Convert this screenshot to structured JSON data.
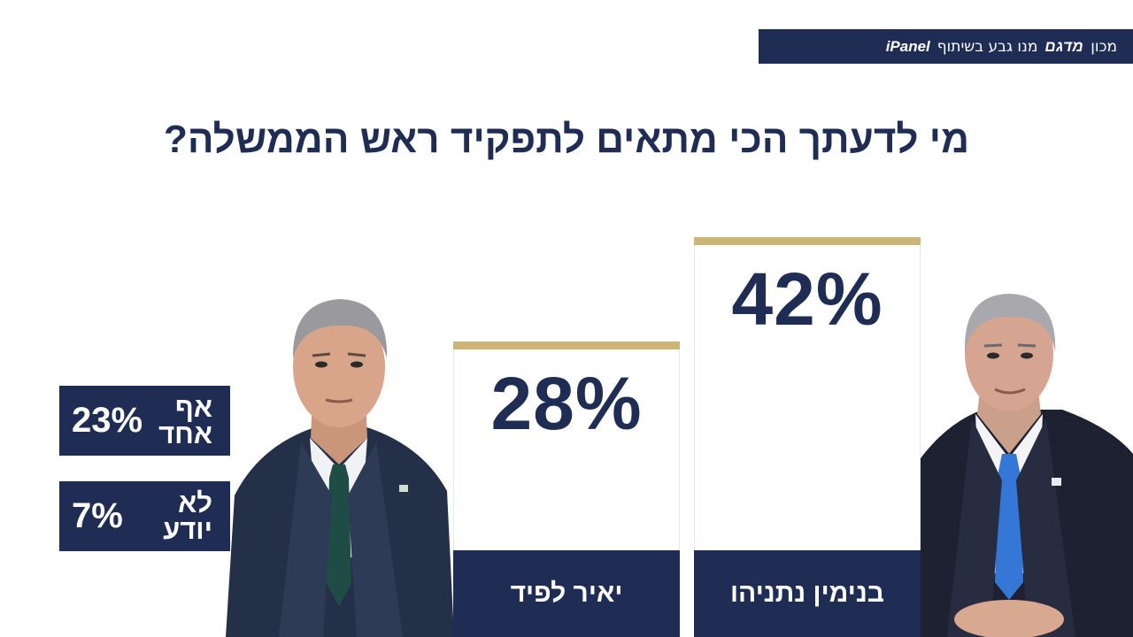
{
  "source_banner": {
    "text": "מכון",
    "logo": "מדגם",
    "with": "מנו גבע בשיתוף",
    "partner": "iPanel"
  },
  "question": "מי לדעתך הכי מתאים לתפקיד ראש הממשלה?",
  "chart_data": {
    "type": "bar",
    "title": "מי לדעתך הכי מתאים לתפקיד ראש הממשלה?",
    "categories": [
      "בנימין נתניהו",
      "יאיר לפיד"
    ],
    "values": [
      42,
      28
    ],
    "value_labels": [
      "42%",
      "28%"
    ],
    "unit": "%",
    "others": [
      {
        "label": "אף אחד",
        "value": 23,
        "value_label": "23%"
      },
      {
        "label": "לא יודע",
        "value": 7,
        "value_label": "7%"
      }
    ]
  },
  "side_boxes": {
    "none": {
      "label_line1": "אף",
      "label_line2": "אחד",
      "value": "23%"
    },
    "dont_know": {
      "label_line1": "לא",
      "label_line2": "יודע",
      "value": "7%"
    }
  },
  "colors": {
    "navy": "#1f2d55",
    "gold": "#cdb57a",
    "white": "#ffffff"
  },
  "portraits": {
    "left": "portrait-yair-lapid",
    "right": "portrait-benjamin-netanyahu"
  }
}
